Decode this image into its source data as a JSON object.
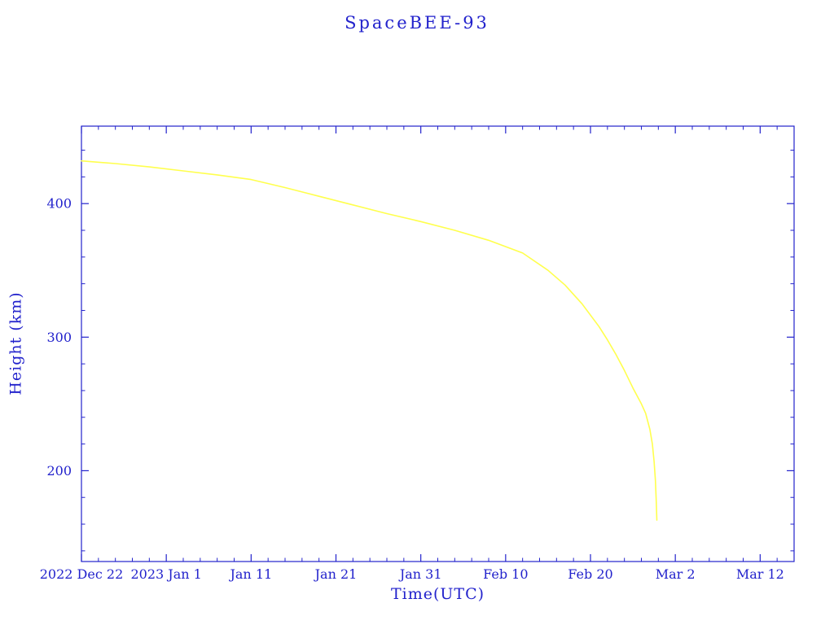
{
  "chart_data": {
    "type": "line",
    "title": "SpaceBEE-93",
    "xlabel": "Time(UTC)",
    "ylabel": "Height (km)",
    "x_unit": "days since 2022 Dec 22",
    "x_ticks": [
      {
        "day": 0,
        "label": "2022 Dec 22"
      },
      {
        "day": 10,
        "label": "2023 Jan 1"
      },
      {
        "day": 20,
        "label": "Jan 11"
      },
      {
        "day": 30,
        "label": "Jan 21"
      },
      {
        "day": 40,
        "label": "Jan 31"
      },
      {
        "day": 50,
        "label": "Feb 10"
      },
      {
        "day": 60,
        "label": "Feb 20"
      },
      {
        "day": 70,
        "label": "Mar 2"
      },
      {
        "day": 80,
        "label": "Mar 12"
      }
    ],
    "y_ticks": [
      200,
      300,
      400
    ],
    "xlim": [
      0,
      84
    ],
    "ylim": [
      132,
      458
    ],
    "grid": false,
    "legend": false,
    "colors": {
      "axis": "#2222cc",
      "line": "#ffff4d",
      "background": "#ffffff"
    },
    "series": [
      {
        "name": "SpaceBEE-93 orbital height",
        "points": [
          [
            0,
            432
          ],
          [
            4,
            430
          ],
          [
            8,
            427.5
          ],
          [
            12,
            424.5
          ],
          [
            16,
            421.5
          ],
          [
            20,
            418
          ],
          [
            24,
            412
          ],
          [
            28,
            405.5
          ],
          [
            32,
            399
          ],
          [
            36,
            392.5
          ],
          [
            40,
            386.5
          ],
          [
            44,
            380
          ],
          [
            48,
            372.5
          ],
          [
            52,
            363
          ],
          [
            55,
            350
          ],
          [
            57,
            339
          ],
          [
            59,
            325
          ],
          [
            61,
            308
          ],
          [
            62,
            298
          ],
          [
            63,
            287
          ],
          [
            64,
            275
          ],
          [
            65,
            262
          ],
          [
            66,
            250
          ],
          [
            66.5,
            243
          ],
          [
            67,
            231
          ],
          [
            67.3,
            220
          ],
          [
            67.5,
            207
          ],
          [
            67.65,
            193
          ],
          [
            67.75,
            178
          ],
          [
            67.82,
            163
          ]
        ]
      }
    ]
  }
}
